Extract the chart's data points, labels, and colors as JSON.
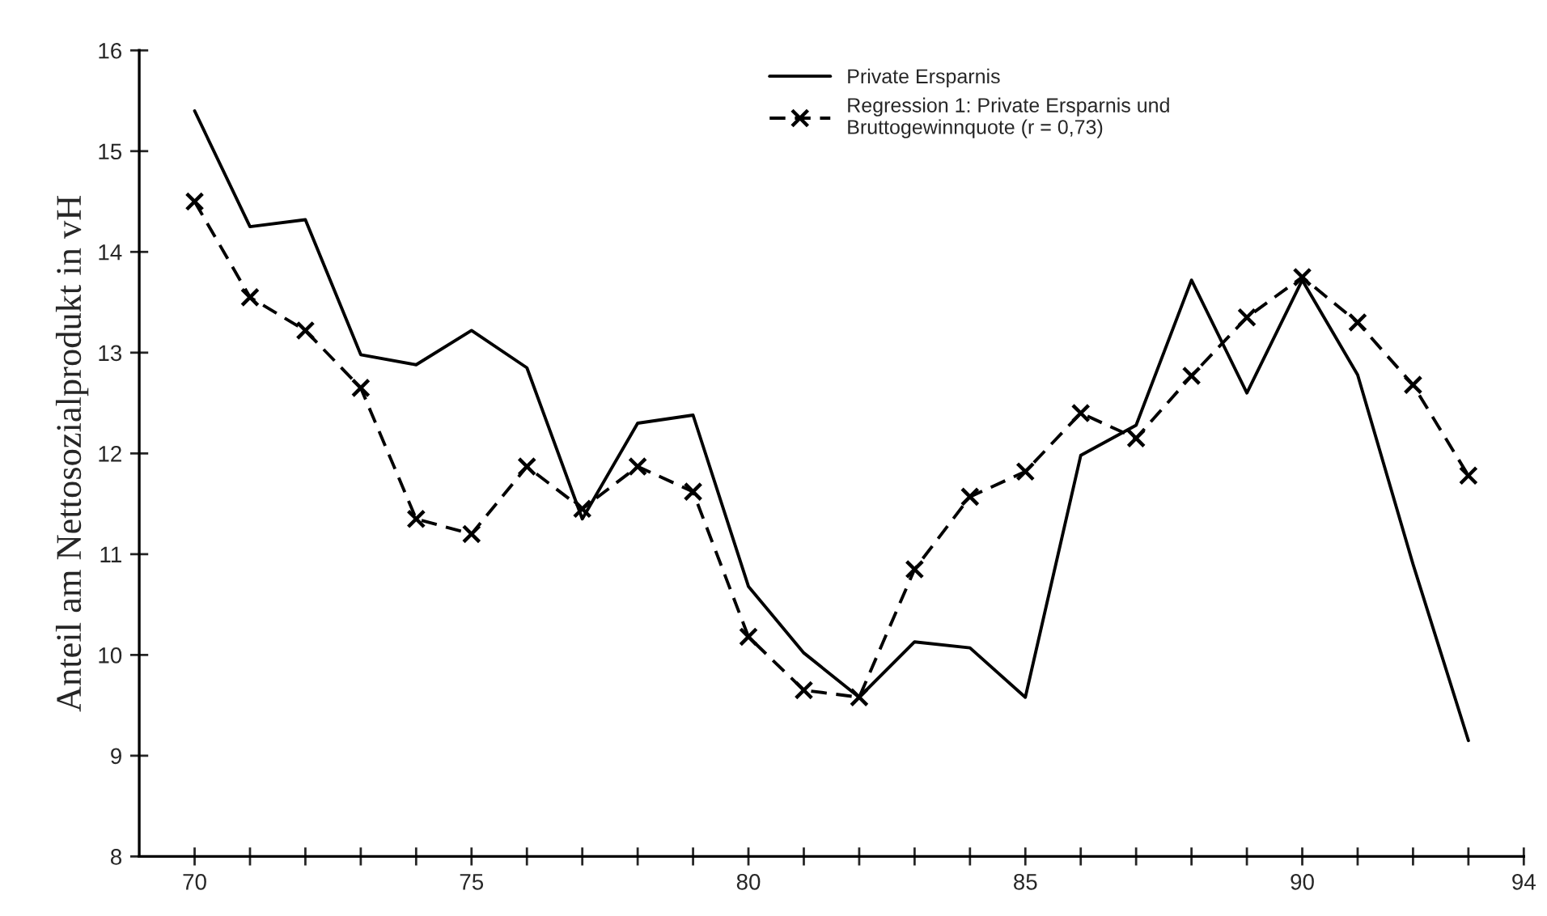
{
  "chart_data": {
    "type": "line",
    "ylabel": "Anteil am Nettosozialprodukt in vH",
    "x": [
      70,
      71,
      72,
      73,
      74,
      75,
      76,
      77,
      78,
      79,
      80,
      81,
      82,
      83,
      84,
      85,
      86,
      87,
      88,
      89,
      90,
      91,
      92,
      93
    ],
    "series": [
      {
        "name": "Private Ersparnis",
        "color": "#000000",
        "line_style": "solid",
        "marker": "none",
        "values": [
          15.4,
          14.25,
          14.32,
          12.98,
          12.88,
          13.22,
          12.85,
          11.35,
          12.3,
          12.38,
          10.68,
          10.02,
          9.58,
          10.13,
          10.07,
          9.58,
          11.98,
          12.28,
          13.72,
          12.6,
          13.72,
          12.78,
          10.9,
          9.15
        ]
      },
      {
        "name": "Regression 1: Private Ersparnis und\nBruttogewinnquote (r = 0,73)",
        "color": "#000000",
        "line_style": "dashed",
        "marker": "cross",
        "values": [
          14.5,
          13.55,
          13.22,
          12.65,
          11.35,
          11.2,
          11.87,
          11.45,
          11.87,
          11.62,
          10.18,
          9.65,
          9.58,
          10.85,
          11.57,
          11.82,
          12.4,
          12.15,
          12.77,
          13.35,
          13.75,
          13.3,
          12.68,
          11.78
        ]
      }
    ],
    "xlim": [
      69,
      94
    ],
    "xticks": [
      70,
      {
        "value": 71,
        "label": null
      },
      {
        "value": 72,
        "label": null
      },
      {
        "value": 73,
        "label": null
      },
      {
        "value": 74,
        "label": null
      },
      75,
      {
        "value": 76,
        "label": null
      },
      {
        "value": 77,
        "label": null
      },
      {
        "value": 78,
        "label": null
      },
      {
        "value": 79,
        "label": null
      },
      80,
      {
        "value": 81,
        "label": null
      },
      {
        "value": 82,
        "label": null
      },
      {
        "value": 83,
        "label": null
      },
      {
        "value": 84,
        "label": null
      },
      85,
      {
        "value": 86,
        "label": null
      },
      {
        "value": 87,
        "label": null
      },
      {
        "value": 88,
        "label": null
      },
      {
        "value": 89,
        "label": null
      },
      90,
      {
        "value": 91,
        "label": null
      },
      {
        "value": 92,
        "label": null
      },
      {
        "value": 93,
        "label": null
      },
      94
    ],
    "ylim": [
      8,
      16
    ],
    "yticks": [
      8,
      9,
      10,
      11,
      12,
      13,
      14,
      15,
      16
    ],
    "grid": false,
    "legend": "top"
  }
}
